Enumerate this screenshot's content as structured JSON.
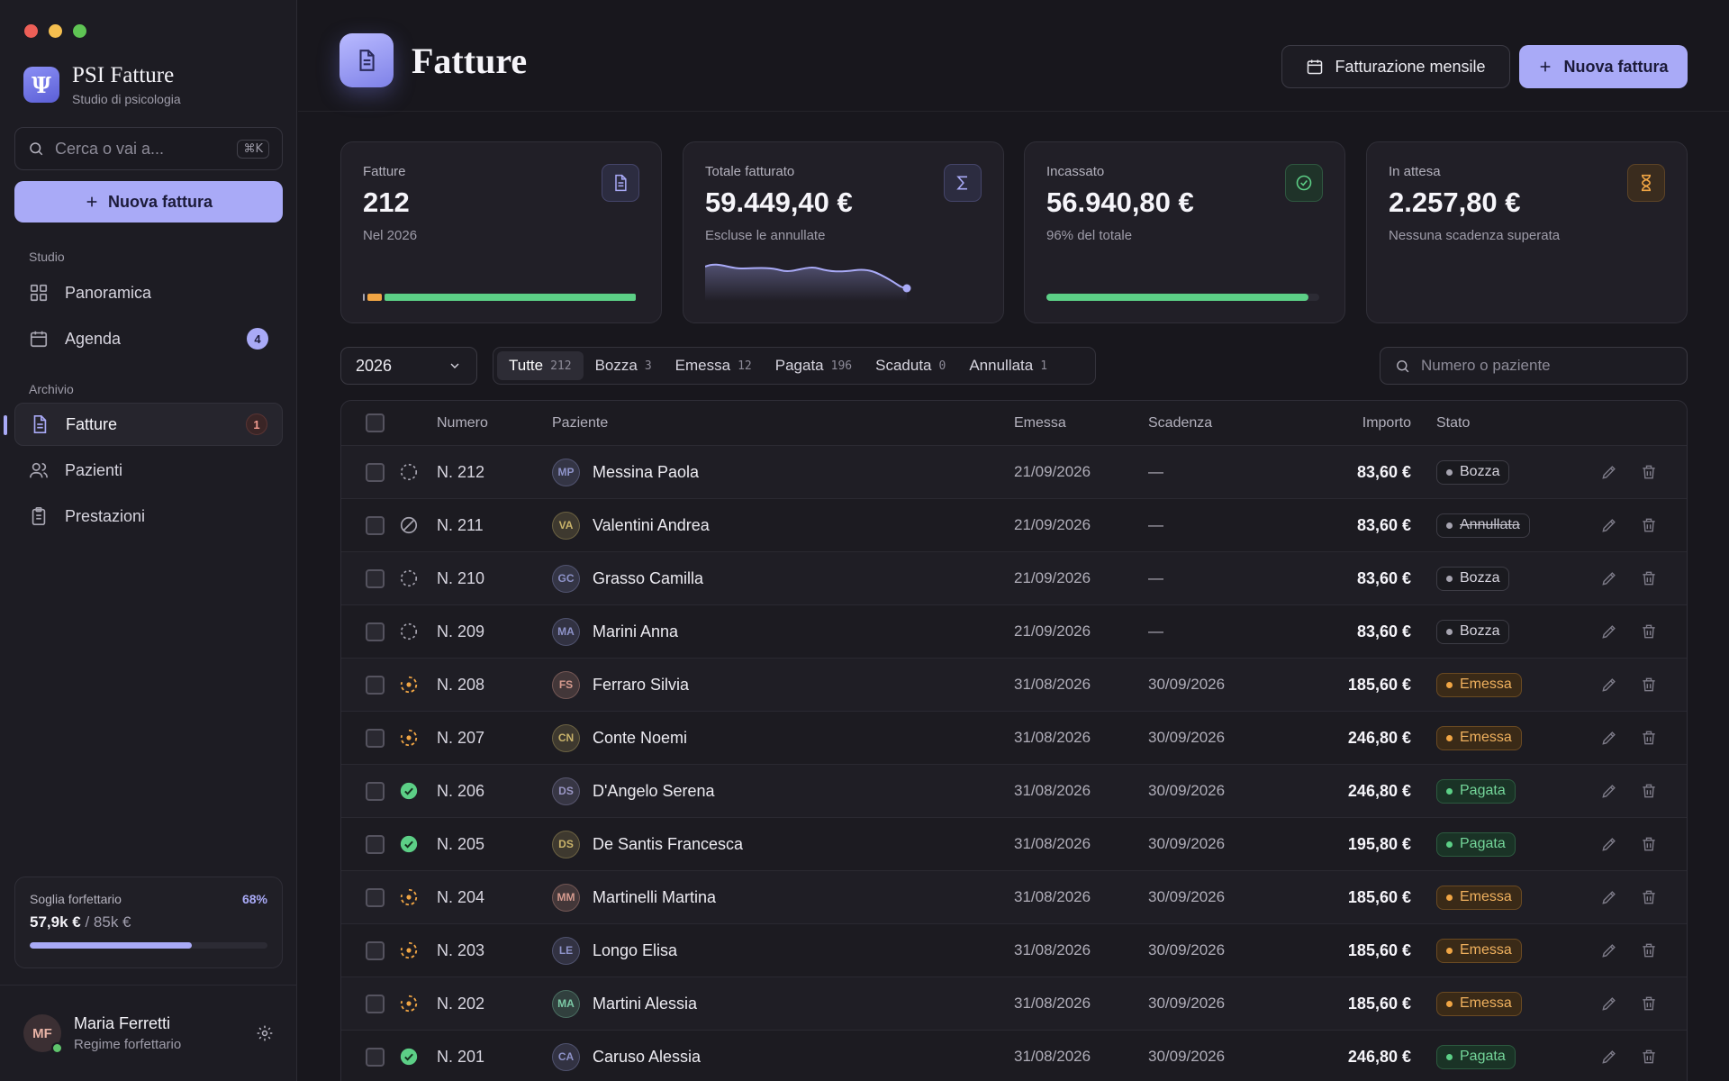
{
  "app": {
    "name": "PSI Fatture",
    "subtitle": "Studio di psicologia"
  },
  "sidebar": {
    "search_placeholder": "Cerca o vai a...",
    "search_shortcut": "⌘K",
    "new_invoice": "Nuova fattura",
    "section_studio": "Studio",
    "section_archivio": "Archivio",
    "items": [
      {
        "label": "Panoramica",
        "icon": "grid-icon"
      },
      {
        "label": "Agenda",
        "icon": "calendar-icon",
        "badge": "4"
      },
      {
        "label": "Fatture",
        "icon": "document-icon",
        "badge": "1"
      },
      {
        "label": "Pazienti",
        "icon": "users-icon"
      },
      {
        "label": "Prestazioni",
        "icon": "clipboard-icon"
      }
    ],
    "threshold": {
      "label": "Soglia forfettario",
      "percent": "68%",
      "value": "57,9k €",
      "limit": "/ 85k €",
      "fraction": 0.68
    },
    "user": {
      "initials": "MF",
      "name": "Maria Ferretti",
      "regime": "Regime forfettario"
    }
  },
  "header": {
    "title": "Fatture",
    "monthly_button": "Fatturazione mensile",
    "new_button": "Nuova fattura"
  },
  "cards": [
    {
      "label": "Fatture",
      "value": "212",
      "sub": "Nel 2026",
      "icon": "document-icon"
    },
    {
      "label": "Totale fatturato",
      "value": "59.449,40 €",
      "sub": "Escluse le annullate",
      "icon": "sigma-icon"
    },
    {
      "label": "Incassato",
      "value": "56.940,80 €",
      "sub": "96% del totale",
      "icon": "check-circle-icon",
      "fraction": 0.96
    },
    {
      "label": "In attesa",
      "value": "2.257,80 €",
      "sub": "Nessuna scadenza superata",
      "icon": "hourglass-icon"
    }
  ],
  "filters": {
    "year": "2026",
    "tabs": [
      {
        "label": "Tutte",
        "count": "212"
      },
      {
        "label": "Bozza",
        "count": "3"
      },
      {
        "label": "Emessa",
        "count": "12"
      },
      {
        "label": "Pagata",
        "count": "196"
      },
      {
        "label": "Scaduta",
        "count": "0"
      },
      {
        "label": "Annullata",
        "count": "1"
      }
    ],
    "search_placeholder": "Numero o paziente"
  },
  "table": {
    "columns": {
      "numero": "Numero",
      "paziente": "Paziente",
      "emessa": "Emessa",
      "scadenza": "Scadenza",
      "importo": "Importo",
      "stato": "Stato"
    },
    "rows": [
      {
        "numero": "N. 212",
        "initials": "MP",
        "paziente": "Messina Paola",
        "emessa": "21/09/2026",
        "scadenza": "—",
        "importo": "83,60 €",
        "stato": "Bozza",
        "kind": "bozza",
        "avatar_color": "#8e93c9"
      },
      {
        "numero": "N. 211",
        "initials": "VA",
        "paziente": "Valentini Andrea",
        "emessa": "21/09/2026",
        "scadenza": "—",
        "importo": "83,60 €",
        "stato": "Annullata",
        "kind": "annullata",
        "avatar_color": "#c9b36a"
      },
      {
        "numero": "N. 210",
        "initials": "GC",
        "paziente": "Grasso Camilla",
        "emessa": "21/09/2026",
        "scadenza": "—",
        "importo": "83,60 €",
        "stato": "Bozza",
        "kind": "bozza",
        "avatar_color": "#8e93c9"
      },
      {
        "numero": "N. 209",
        "initials": "MA",
        "paziente": "Marini Anna",
        "emessa": "21/09/2026",
        "scadenza": "—",
        "importo": "83,60 €",
        "stato": "Bozza",
        "kind": "bozza",
        "avatar_color": "#8e93c9"
      },
      {
        "numero": "N. 208",
        "initials": "FS",
        "paziente": "Ferraro Silvia",
        "emessa": "31/08/2026",
        "scadenza": "30/09/2026",
        "importo": "185,60 €",
        "stato": "Emessa",
        "kind": "emessa",
        "avatar_color": "#d59a8e"
      },
      {
        "numero": "N. 207",
        "initials": "CN",
        "paziente": "Conte Noemi",
        "emessa": "31/08/2026",
        "scadenza": "30/09/2026",
        "importo": "246,80 €",
        "stato": "Emessa",
        "kind": "emessa",
        "avatar_color": "#c9b36a"
      },
      {
        "numero": "N. 206",
        "initials": "DS",
        "paziente": "D'Angelo Serena",
        "emessa": "31/08/2026",
        "scadenza": "30/09/2026",
        "importo": "246,80 €",
        "stato": "Pagata",
        "kind": "pagata",
        "avatar_color": "#9a96c4"
      },
      {
        "numero": "N. 205",
        "initials": "DS",
        "paziente": "De Santis Francesca",
        "emessa": "31/08/2026",
        "scadenza": "30/09/2026",
        "importo": "195,80 €",
        "stato": "Pagata",
        "kind": "pagata",
        "avatar_color": "#c9b36a"
      },
      {
        "numero": "N. 204",
        "initials": "MM",
        "paziente": "Martinelli Martina",
        "emessa": "31/08/2026",
        "scadenza": "30/09/2026",
        "importo": "185,60 €",
        "stato": "Emessa",
        "kind": "emessa",
        "avatar_color": "#d59a8e"
      },
      {
        "numero": "N. 203",
        "initials": "LE",
        "paziente": "Longo Elisa",
        "emessa": "31/08/2026",
        "scadenza": "30/09/2026",
        "importo": "185,60 €",
        "stato": "Emessa",
        "kind": "emessa",
        "avatar_color": "#8e93c9"
      },
      {
        "numero": "N. 202",
        "initials": "MA",
        "paziente": "Martini Alessia",
        "emessa": "31/08/2026",
        "scadenza": "30/09/2026",
        "importo": "185,60 €",
        "stato": "Emessa",
        "kind": "emessa",
        "avatar_color": "#7cc9a6"
      },
      {
        "numero": "N. 201",
        "initials": "CA",
        "paziente": "Caruso Alessia",
        "emessa": "31/08/2026",
        "scadenza": "30/09/2026",
        "importo": "246,80 €",
        "stato": "Pagata",
        "kind": "pagata",
        "avatar_color": "#8e93c9"
      }
    ]
  },
  "colors": {
    "accent": "#a9aaf7",
    "paid": "#5ccf86",
    "issued": "#f0a544",
    "draft": "#a6a4b0"
  }
}
